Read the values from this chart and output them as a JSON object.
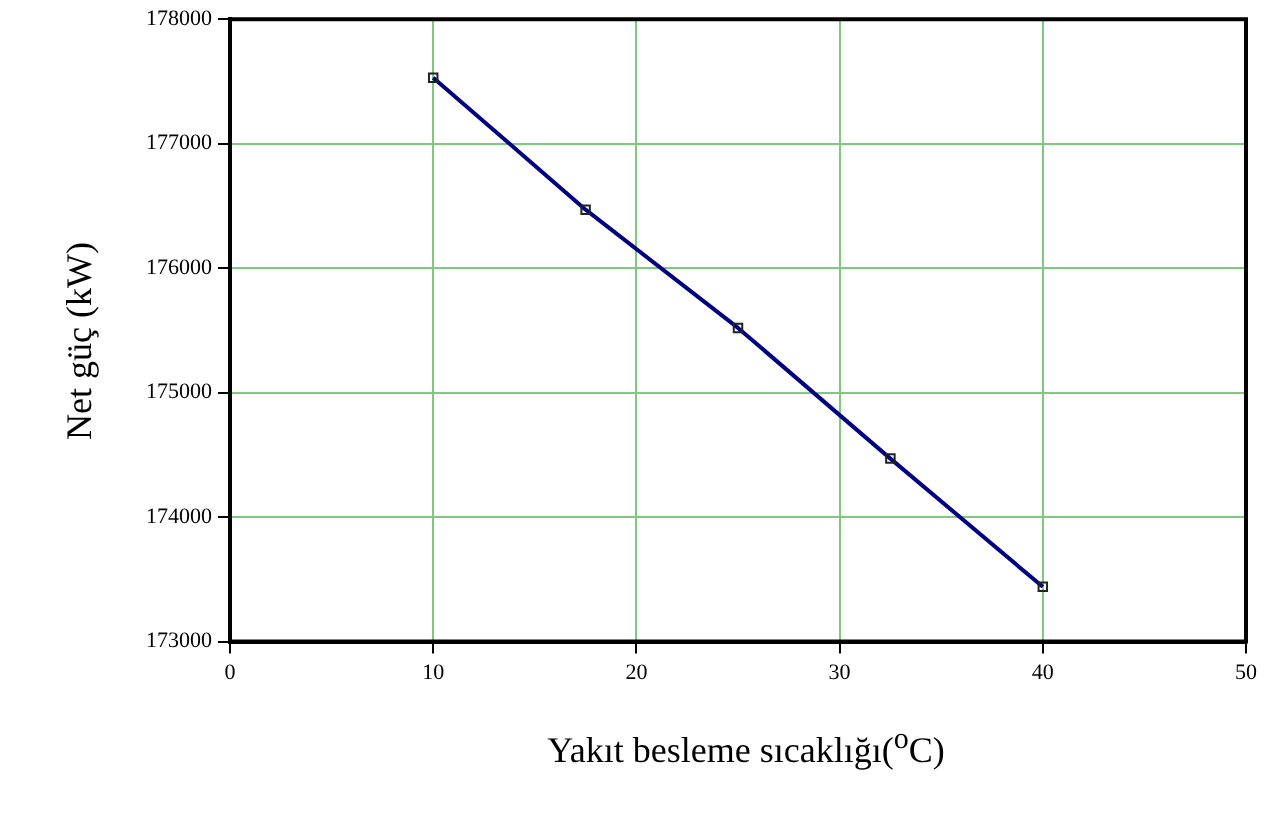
{
  "chart_data": {
    "type": "line",
    "xlabel": "Yakıt besleme sıcaklığı($^{o}$C)",
    "ylabel": "Net güç (kW)",
    "x": [
      10,
      17.5,
      25,
      32.5,
      40
    ],
    "series": [
      {
        "color": "#000080",
        "values": [
          177530,
          176470,
          175520,
          174470,
          173440
        ]
      }
    ],
    "xlim": [
      0,
      50
    ],
    "xticks": [
      0,
      10,
      20,
      30,
      40,
      50
    ],
    "ylim": [
      173000,
      178000
    ],
    "yticks": [
      173000,
      174000,
      175000,
      176000,
      177000,
      178000
    ],
    "grid": true,
    "marker": "square",
    "line_style": "solid",
    "legend": false
  }
}
